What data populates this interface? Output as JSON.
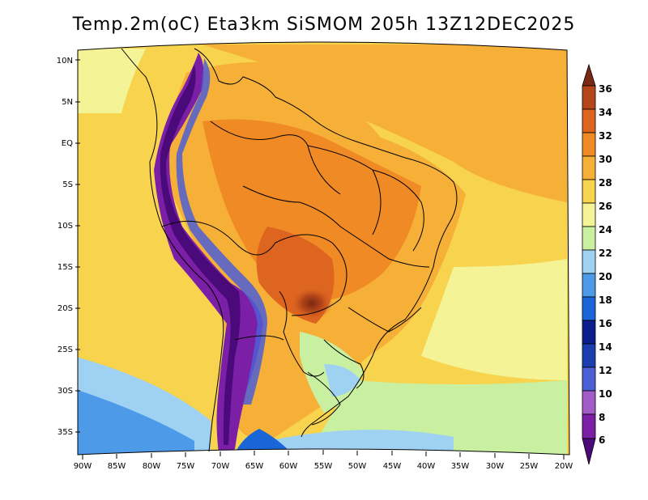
{
  "title": "Temp.2m(oC) Eta3km SiSMOM 205h 13Z12DEC2025",
  "map": {
    "lat_labels": [
      "10N",
      "5N",
      "EQ",
      "5S",
      "10S",
      "15S",
      "20S",
      "25S",
      "30S",
      "35S"
    ],
    "lon_labels": [
      "90W",
      "85W",
      "80W",
      "75W",
      "70W",
      "65W",
      "60W",
      "55W",
      "50W",
      "45W",
      "40W",
      "35W",
      "30W",
      "25W",
      "20W"
    ]
  },
  "colorbar": {
    "labels": [
      "6",
      "8",
      "10",
      "12",
      "14",
      "16",
      "18",
      "20",
      "22",
      "24",
      "26",
      "28",
      "30",
      "32",
      "34",
      "36"
    ],
    "colors": [
      "#4b0a7a",
      "#7a1fa6",
      "#a35bc8",
      "#4d5fd6",
      "#1c3db0",
      "#0b1e8c",
      "#1a66d8",
      "#4d9be8",
      "#9fd2f2",
      "#c8f0a0",
      "#f4f496",
      "#f7d34e",
      "#f6b037",
      "#ef8a25",
      "#dd6520",
      "#b5461a",
      "#7a2a12"
    ]
  }
}
